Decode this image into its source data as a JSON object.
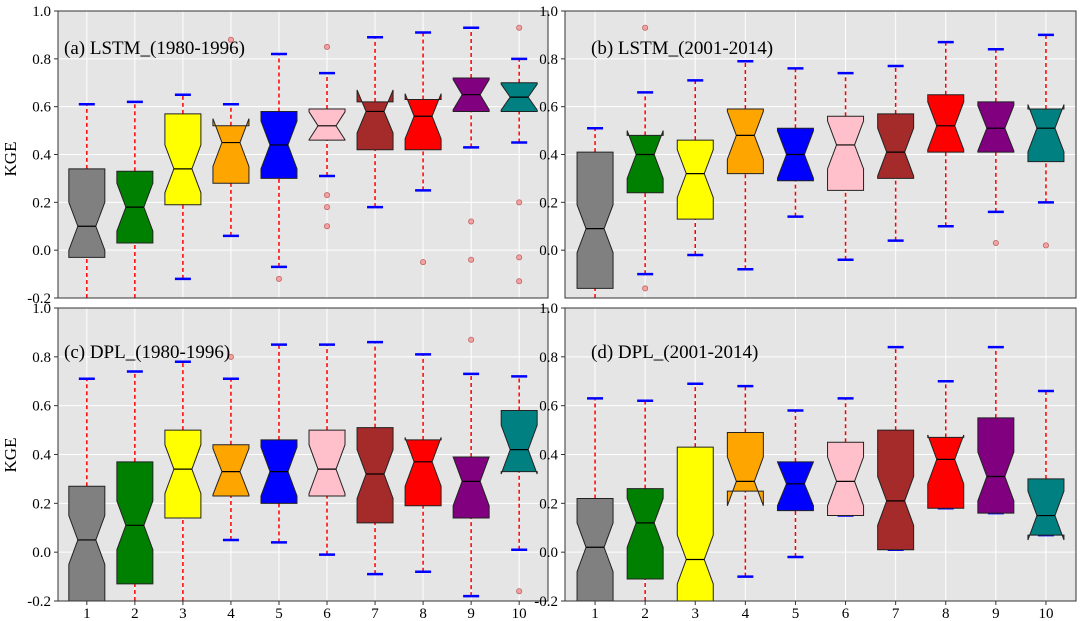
{
  "figure": {
    "ylabel": "KGE"
  },
  "chart_data": [
    {
      "type": "boxplot",
      "title": "(a) LSTM_(1980-1996)",
      "ylabel": "KGE",
      "ylim": [
        -0.2,
        1.0
      ],
      "yticks": [
        "-0.2",
        "0.0",
        "0.2",
        "0.4",
        "0.6",
        "0.8",
        "1.0"
      ],
      "categories": [
        "1",
        "2",
        "3",
        "4",
        "5",
        "6",
        "7",
        "8",
        "9",
        "10"
      ],
      "colors": [
        "#808080",
        "#008000",
        "#ffff00",
        "#ffa500",
        "#0000ff",
        "#ffc0cb",
        "#a52a2a",
        "#ff0000",
        "#800080",
        "#008080"
      ],
      "boxes": [
        {
          "whislo": -0.2,
          "q1": -0.03,
          "med": 0.1,
          "q3": 0.34,
          "whishi": 0.61,
          "fliers": []
        },
        {
          "whislo": -0.2,
          "q1": 0.03,
          "med": 0.18,
          "q3": 0.33,
          "whishi": 0.62,
          "fliers": []
        },
        {
          "whislo": -0.12,
          "q1": 0.19,
          "med": 0.34,
          "q3": 0.57,
          "whishi": 0.65,
          "fliers": []
        },
        {
          "whislo": 0.06,
          "q1": 0.28,
          "med": 0.45,
          "q3": 0.52,
          "whishi": 0.61,
          "fliers": [
            0.88
          ]
        },
        {
          "whislo": -0.07,
          "q1": 0.3,
          "med": 0.44,
          "q3": 0.58,
          "whishi": 0.82,
          "fliers": [
            -0.12
          ]
        },
        {
          "whislo": 0.31,
          "q1": 0.46,
          "med": 0.52,
          "q3": 0.59,
          "whishi": 0.74,
          "fliers": [
            0.85,
            0.23,
            0.18,
            0.1
          ]
        },
        {
          "whislo": 0.18,
          "q1": 0.42,
          "med": 0.58,
          "q3": 0.62,
          "whishi": 0.89,
          "fliers": []
        },
        {
          "whislo": 0.25,
          "q1": 0.42,
          "med": 0.56,
          "q3": 0.63,
          "whishi": 0.91,
          "fliers": [
            -0.05
          ]
        },
        {
          "whislo": 0.43,
          "q1": 0.58,
          "med": 0.65,
          "q3": 0.72,
          "whishi": 0.93,
          "fliers": [
            0.12,
            -0.04
          ]
        },
        {
          "whislo": 0.45,
          "q1": 0.58,
          "med": 0.64,
          "q3": 0.7,
          "whishi": 0.8,
          "fliers": [
            0.93,
            0.2,
            -0.03,
            -0.13
          ]
        }
      ]
    },
    {
      "type": "boxplot",
      "title": "(b) LSTM_(2001-2014)",
      "ylabel": "",
      "ylim": [
        -0.2,
        1.0
      ],
      "yticks": [
        "0.0",
        "0.2",
        "0.4",
        "0.6",
        "0.8",
        "1.0"
      ],
      "categories": [
        "1",
        "2",
        "3",
        "4",
        "5",
        "6",
        "7",
        "8",
        "9",
        "10"
      ],
      "colors": [
        "#808080",
        "#008000",
        "#ffff00",
        "#ffa500",
        "#0000ff",
        "#ffc0cb",
        "#a52a2a",
        "#ff0000",
        "#800080",
        "#008080"
      ],
      "boxes": [
        {
          "whislo": -0.2,
          "q1": -0.16,
          "med": 0.09,
          "q3": 0.41,
          "whishi": 0.51,
          "fliers": []
        },
        {
          "whislo": -0.1,
          "q1": 0.24,
          "med": 0.4,
          "q3": 0.48,
          "whishi": 0.66,
          "fliers": [
            0.93,
            -0.16
          ]
        },
        {
          "whislo": -0.02,
          "q1": 0.13,
          "med": 0.32,
          "q3": 0.46,
          "whishi": 0.71,
          "fliers": []
        },
        {
          "whislo": -0.08,
          "q1": 0.32,
          "med": 0.48,
          "q3": 0.59,
          "whishi": 0.79,
          "fliers": []
        },
        {
          "whislo": 0.14,
          "q1": 0.29,
          "med": 0.4,
          "q3": 0.51,
          "whishi": 0.76,
          "fliers": []
        },
        {
          "whislo": -0.04,
          "q1": 0.25,
          "med": 0.44,
          "q3": 0.56,
          "whishi": 0.74,
          "fliers": []
        },
        {
          "whislo": 0.04,
          "q1": 0.3,
          "med": 0.41,
          "q3": 0.57,
          "whishi": 0.77,
          "fliers": []
        },
        {
          "whislo": 0.1,
          "q1": 0.41,
          "med": 0.52,
          "q3": 0.65,
          "whishi": 0.87,
          "fliers": []
        },
        {
          "whislo": 0.16,
          "q1": 0.41,
          "med": 0.51,
          "q3": 0.62,
          "whishi": 0.84,
          "fliers": [
            0.03
          ]
        },
        {
          "whislo": 0.2,
          "q1": 0.37,
          "med": 0.51,
          "q3": 0.59,
          "whishi": 0.9,
          "fliers": [
            0.02
          ]
        }
      ]
    },
    {
      "type": "boxplot",
      "title": "(c) DPL_(1980-1996)",
      "ylabel": "KGE",
      "ylim": [
        -0.2,
        1.0
      ],
      "yticks": [
        "-0.2",
        "0.0",
        "0.2",
        "0.4",
        "0.6",
        "0.8",
        "1.0"
      ],
      "categories": [
        "1",
        "2",
        "3",
        "4",
        "5",
        "6",
        "7",
        "8",
        "9",
        "10"
      ],
      "colors": [
        "#808080",
        "#008000",
        "#ffff00",
        "#ffa500",
        "#0000ff",
        "#ffc0cb",
        "#a52a2a",
        "#ff0000",
        "#800080",
        "#008080"
      ],
      "boxes": [
        {
          "whislo": -0.2,
          "q1": -0.2,
          "med": 0.05,
          "q3": 0.27,
          "whishi": 0.71,
          "fliers": []
        },
        {
          "whislo": -0.2,
          "q1": -0.13,
          "med": 0.11,
          "q3": 0.37,
          "whishi": 0.74,
          "fliers": []
        },
        {
          "whislo": -0.2,
          "q1": 0.14,
          "med": 0.34,
          "q3": 0.5,
          "whishi": 0.78,
          "fliers": []
        },
        {
          "whislo": 0.05,
          "q1": 0.23,
          "med": 0.33,
          "q3": 0.44,
          "whishi": 0.71,
          "fliers": [
            0.8
          ]
        },
        {
          "whislo": 0.04,
          "q1": 0.2,
          "med": 0.33,
          "q3": 0.46,
          "whishi": 0.85,
          "fliers": []
        },
        {
          "whislo": -0.01,
          "q1": 0.23,
          "med": 0.34,
          "q3": 0.5,
          "whishi": 0.85,
          "fliers": []
        },
        {
          "whislo": -0.09,
          "q1": 0.12,
          "med": 0.32,
          "q3": 0.51,
          "whishi": 0.86,
          "fliers": []
        },
        {
          "whislo": -0.08,
          "q1": 0.19,
          "med": 0.37,
          "q3": 0.46,
          "whishi": 0.81,
          "fliers": []
        },
        {
          "whislo": -0.18,
          "q1": 0.14,
          "med": 0.29,
          "q3": 0.39,
          "whishi": 0.73,
          "fliers": [
            0.87
          ]
        },
        {
          "whislo": 0.01,
          "q1": 0.33,
          "med": 0.42,
          "q3": 0.58,
          "whishi": 0.72,
          "fliers": [
            -0.16
          ]
        }
      ]
    },
    {
      "type": "boxplot",
      "title": "(d) DPL_(2001-2014)",
      "ylabel": "",
      "ylim": [
        -0.2,
        1.0
      ],
      "yticks": [
        "-0.2",
        "0.0",
        "0.2",
        "0.4",
        "0.6",
        "0.8",
        "1.0"
      ],
      "categories": [
        "1",
        "2",
        "3",
        "4",
        "5",
        "6",
        "7",
        "8",
        "9",
        "10"
      ],
      "colors": [
        "#808080",
        "#008000",
        "#ffff00",
        "#ffa500",
        "#0000ff",
        "#ffc0cb",
        "#a52a2a",
        "#ff0000",
        "#800080",
        "#008080"
      ],
      "boxes": [
        {
          "whislo": -0.2,
          "q1": -0.2,
          "med": 0.02,
          "q3": 0.22,
          "whishi": 0.63,
          "fliers": []
        },
        {
          "whislo": -0.2,
          "q1": -0.11,
          "med": 0.12,
          "q3": 0.26,
          "whishi": 0.62,
          "fliers": []
        },
        {
          "whislo": -0.2,
          "q1": -0.2,
          "med": -0.03,
          "q3": 0.43,
          "whishi": 0.69,
          "fliers": []
        },
        {
          "whislo": -0.1,
          "q1": 0.25,
          "med": 0.29,
          "q3": 0.49,
          "whishi": 0.68,
          "fliers": []
        },
        {
          "whislo": -0.02,
          "q1": 0.17,
          "med": 0.28,
          "q3": 0.37,
          "whishi": 0.58,
          "fliers": []
        },
        {
          "whislo": 0.15,
          "q1": 0.15,
          "med": 0.29,
          "q3": 0.45,
          "whishi": 0.63,
          "fliers": []
        },
        {
          "whislo": 0.01,
          "q1": 0.01,
          "med": 0.21,
          "q3": 0.5,
          "whishi": 0.84,
          "fliers": []
        },
        {
          "whislo": 0.18,
          "q1": 0.18,
          "med": 0.38,
          "q3": 0.47,
          "whishi": 0.7,
          "fliers": []
        },
        {
          "whislo": 0.16,
          "q1": 0.16,
          "med": 0.31,
          "q3": 0.55,
          "whishi": 0.84,
          "fliers": []
        },
        {
          "whislo": 0.07,
          "q1": 0.07,
          "med": 0.15,
          "q3": 0.3,
          "whishi": 0.66,
          "fliers": []
        }
      ]
    }
  ]
}
